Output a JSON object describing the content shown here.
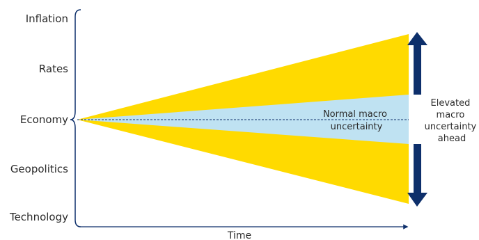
{
  "diagram": {
    "categories": [
      "Inflation",
      "Rates",
      "Economy",
      "Geopolitics",
      "Technology"
    ],
    "inner_label": [
      "Normal macro",
      "uncertainty"
    ],
    "side_label": [
      "Elevated",
      "macro",
      "uncertainty",
      "ahead"
    ],
    "x_axis_label": "Time",
    "colors": {
      "outer_cone": "#FFDA00",
      "inner_cone": "#BFE2F2",
      "arrow": "#0D2F6B",
      "center_line": "#0D2F6B",
      "axis": "#0D2F6B",
      "text": "#2B2B2B"
    }
  }
}
